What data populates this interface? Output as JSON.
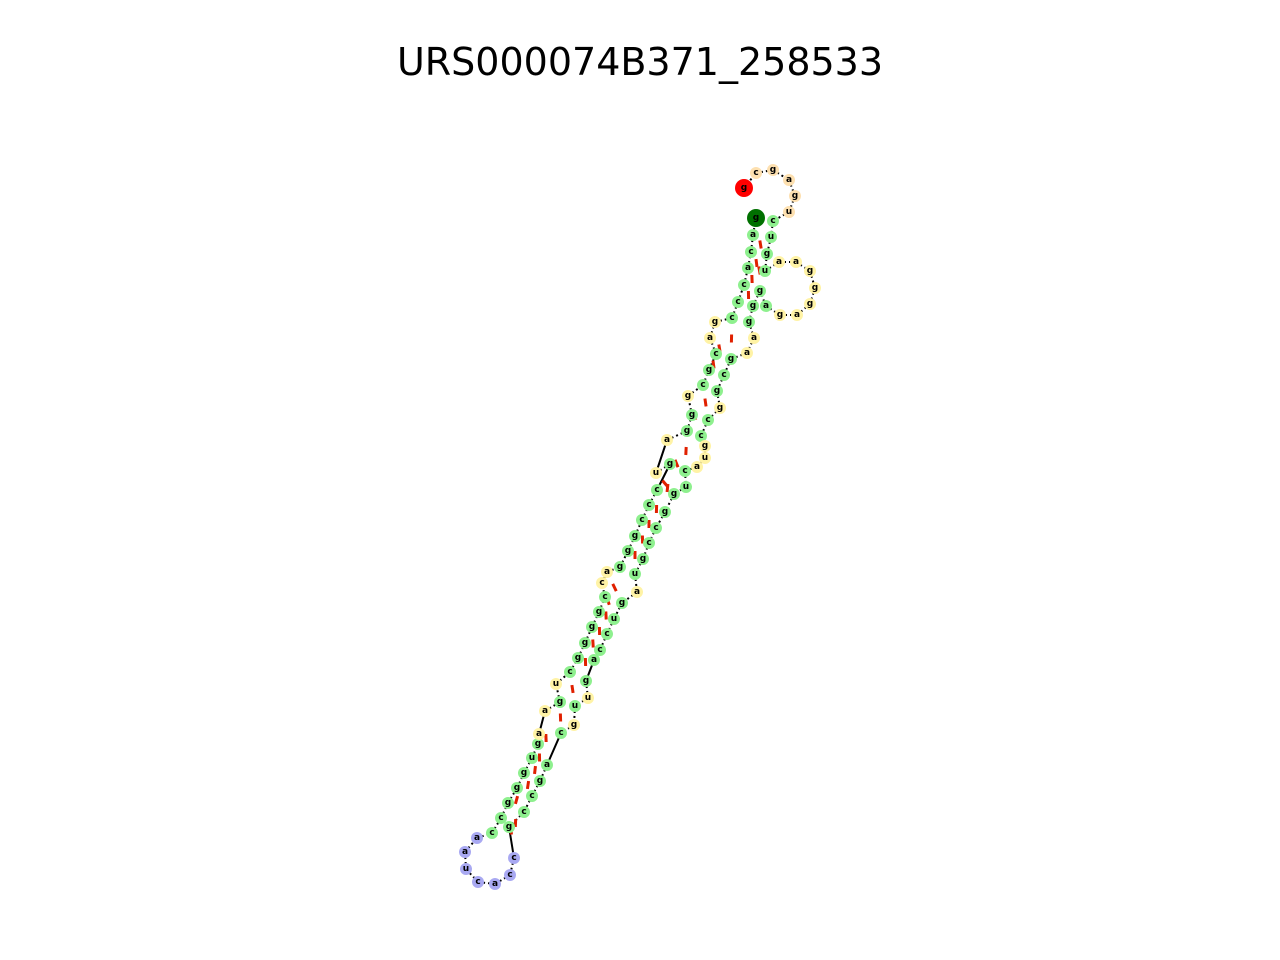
{
  "title": "URS000074B371_258533",
  "colors": {
    "stem": "#8ef08e",
    "interior_loop": "#fff3a6",
    "hairpin_loop": "#a9a9f2",
    "multi_loop": "#fde0b0",
    "five_prime": "#ff0000",
    "three_prime": "#007000",
    "base_pair": "#e02000",
    "backbone": "#000000"
  },
  "legend_note": "",
  "sequence_5p_arm": "ccgacg a cgcgg ag cgggcg u gggggcc ca ggc gccgcgc ag c g",
  "hairpin_loop_bases": [
    "a",
    "a",
    "u",
    "c",
    "a",
    "c",
    "c"
  ],
  "top_loop_bases": [
    "c",
    "g",
    "a",
    "g",
    "u"
  ],
  "right_loop_bases": [
    "a",
    "a",
    "g",
    "g",
    "g",
    "a",
    "g",
    "a"
  ]
}
